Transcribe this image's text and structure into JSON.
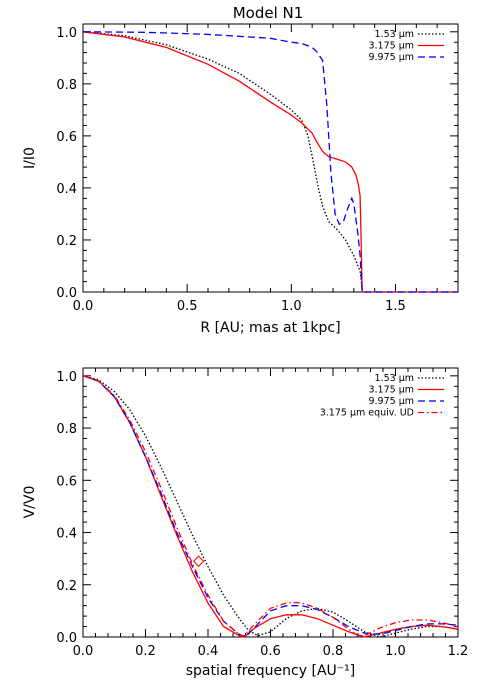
{
  "figure": {
    "title": "Model N1"
  },
  "chart_data": [
    {
      "type": "line",
      "xlabel": "R [AU; mas at 1kpc]",
      "ylabel": "I/I0",
      "xlim": [
        0,
        1.8
      ],
      "ylim": [
        0,
        1.03
      ],
      "xticks": [
        0.0,
        0.5,
        1.0,
        1.5
      ],
      "xtick_labels": [
        "0.0",
        "0.5",
        "1.0",
        "1.5"
      ],
      "yticks": [
        0.0,
        0.2,
        0.4,
        0.6,
        0.8,
        1.0
      ],
      "ytick_labels": [
        "0.0",
        "0.2",
        "0.4",
        "0.6",
        "0.8",
        "1.0"
      ],
      "legend_position": "top-right",
      "series": [
        {
          "name": "1.53 µm",
          "color": "#000000",
          "dash": "dotted",
          "x": [
            0,
            0.2,
            0.4,
            0.6,
            0.75,
            0.9,
            1.0,
            1.05,
            1.08,
            1.1,
            1.13,
            1.15,
            1.18,
            1.22,
            1.26,
            1.3,
            1.32,
            1.33,
            1.335,
            1.34,
            1.8
          ],
          "y": [
            1.0,
            0.985,
            0.95,
            0.895,
            0.84,
            0.76,
            0.7,
            0.66,
            0.6,
            0.52,
            0.4,
            0.33,
            0.27,
            0.24,
            0.2,
            0.14,
            0.1,
            0.08,
            0.05,
            0.0,
            0.0
          ]
        },
        {
          "name": "3.175 µm",
          "color": "#ff0000",
          "dash": "solid",
          "x": [
            0,
            0.2,
            0.4,
            0.6,
            0.75,
            0.9,
            1.0,
            1.05,
            1.1,
            1.12,
            1.15,
            1.18,
            1.22,
            1.26,
            1.29,
            1.31,
            1.32,
            1.33,
            1.335,
            1.34,
            1.8
          ],
          "y": [
            1.0,
            0.98,
            0.94,
            0.875,
            0.81,
            0.73,
            0.68,
            0.65,
            0.61,
            0.58,
            0.54,
            0.52,
            0.51,
            0.5,
            0.48,
            0.45,
            0.42,
            0.37,
            0.2,
            0.0,
            0.0
          ]
        },
        {
          "name": "9.975 µm",
          "color": "#0000ff",
          "dash": "dashed",
          "x": [
            0,
            0.3,
            0.6,
            0.9,
            1.0,
            1.05,
            1.1,
            1.12,
            1.15,
            1.17,
            1.19,
            1.21,
            1.23,
            1.25,
            1.27,
            1.29,
            1.3,
            1.31,
            1.32,
            1.33,
            1.34,
            1.8
          ],
          "y": [
            1.0,
            0.998,
            0.99,
            0.975,
            0.96,
            0.955,
            0.94,
            0.925,
            0.89,
            0.72,
            0.46,
            0.3,
            0.26,
            0.27,
            0.32,
            0.36,
            0.34,
            0.28,
            0.22,
            0.14,
            0.0,
            0.0
          ]
        }
      ]
    },
    {
      "type": "line",
      "xlabel": "spatial frequency [AU⁻¹]",
      "ylabel": "V/V0",
      "xlim": [
        0,
        1.2
      ],
      "ylim": [
        0,
        1.03
      ],
      "xticks": [
        0.0,
        0.2,
        0.4,
        0.6,
        0.8,
        1.0,
        1.2
      ],
      "xtick_labels": [
        "0.0",
        "0.2",
        "0.4",
        "0.6",
        "0.8",
        "1.0",
        "1.2"
      ],
      "yticks": [
        0.0,
        0.2,
        0.4,
        0.6,
        0.8,
        1.0
      ],
      "ytick_labels": [
        "0.0",
        "0.2",
        "0.4",
        "0.6",
        "0.8",
        "1.0"
      ],
      "legend_position": "top-right",
      "marker": {
        "shape": "diamond",
        "color": "#ff0000",
        "x": 0.37,
        "y": 0.29
      },
      "series": [
        {
          "name": "1.53 µm",
          "color": "#000000",
          "dash": "dotted",
          "x": [
            0,
            0.05,
            0.1,
            0.15,
            0.2,
            0.25,
            0.3,
            0.35,
            0.4,
            0.45,
            0.5,
            0.53,
            0.56,
            0.6,
            0.65,
            0.7,
            0.75,
            0.8,
            0.85,
            0.9,
            0.95,
            1.0,
            1.05,
            1.1,
            1.15,
            1.2
          ],
          "y": [
            1.0,
            0.985,
            0.94,
            0.87,
            0.77,
            0.65,
            0.52,
            0.39,
            0.27,
            0.16,
            0.07,
            0.025,
            0.005,
            0.02,
            0.07,
            0.1,
            0.11,
            0.095,
            0.06,
            0.02,
            0.0,
            0.015,
            0.03,
            0.04,
            0.04,
            0.03
          ]
        },
        {
          "name": "3.175 µm",
          "color": "#ff0000",
          "dash": "solid",
          "x": [
            0,
            0.05,
            0.1,
            0.15,
            0.2,
            0.25,
            0.3,
            0.35,
            0.4,
            0.45,
            0.5,
            0.515,
            0.55,
            0.6,
            0.65,
            0.7,
            0.75,
            0.8,
            0.85,
            0.9,
            0.95,
            1.0,
            1.05,
            1.1,
            1.15,
            1.2
          ],
          "y": [
            1.0,
            0.98,
            0.92,
            0.82,
            0.69,
            0.54,
            0.39,
            0.25,
            0.13,
            0.04,
            0.005,
            0.0,
            0.035,
            0.07,
            0.085,
            0.085,
            0.07,
            0.045,
            0.02,
            0.0,
            0.015,
            0.03,
            0.04,
            0.045,
            0.04,
            0.03
          ]
        },
        {
          "name": "9.975 µm",
          "color": "#0000ff",
          "dash": "dashed",
          "x": [
            0,
            0.05,
            0.1,
            0.15,
            0.2,
            0.25,
            0.3,
            0.35,
            0.4,
            0.45,
            0.5,
            0.52,
            0.56,
            0.6,
            0.65,
            0.7,
            0.75,
            0.8,
            0.85,
            0.9,
            0.95,
            1.0,
            1.05,
            1.1,
            1.15,
            1.2
          ],
          "y": [
            1.0,
            0.98,
            0.92,
            0.82,
            0.69,
            0.55,
            0.4,
            0.27,
            0.15,
            0.06,
            0.01,
            0.0,
            0.05,
            0.1,
            0.12,
            0.12,
            0.105,
            0.075,
            0.04,
            0.015,
            0.01,
            0.025,
            0.04,
            0.05,
            0.05,
            0.045
          ]
        },
        {
          "name": "3.175 µm equiv. UD",
          "color": "#ff0000",
          "dash": "dashdot",
          "x": [
            0,
            0.05,
            0.1,
            0.15,
            0.2,
            0.25,
            0.3,
            0.35,
            0.4,
            0.45,
            0.5,
            0.51,
            0.55,
            0.6,
            0.65,
            0.68,
            0.7,
            0.75,
            0.8,
            0.85,
            0.88,
            0.9,
            0.95,
            1.0,
            1.05,
            1.1,
            1.15,
            1.2
          ],
          "y": [
            1.0,
            0.98,
            0.925,
            0.83,
            0.71,
            0.57,
            0.42,
            0.28,
            0.16,
            0.06,
            0.01,
            0.0,
            0.05,
            0.11,
            0.13,
            0.132,
            0.13,
            0.11,
            0.075,
            0.03,
            0.005,
            0.005,
            0.035,
            0.055,
            0.065,
            0.065,
            0.055,
            0.04
          ]
        }
      ]
    }
  ]
}
